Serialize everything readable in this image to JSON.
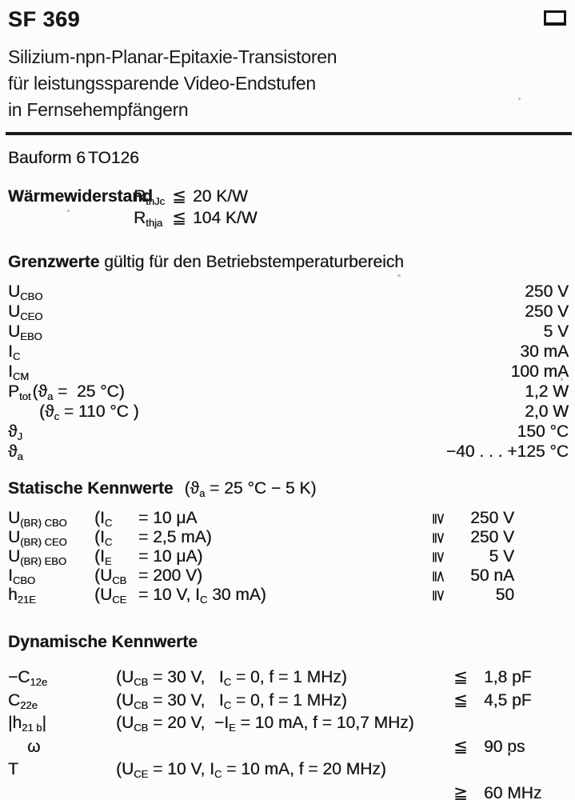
{
  "header": {
    "part_number": "SF 369",
    "title_lines": [
      "Silizium-npn-Planar-Epitaxie-Transistoren",
      "für leistungssparende Video-Endstufen",
      "in Fernsehempfängern"
    ]
  },
  "package_line": {
    "bauform": "Bauform 6",
    "package": "TO126"
  },
  "thermal": {
    "label": "Wärmewiderstand",
    "rows": [
      {
        "sym": [
          {
            "t": "R"
          },
          {
            "sub": "thJc"
          }
        ],
        "rel": "≦",
        "value": "20 K/W"
      },
      {
        "sym": [
          {
            "t": "R"
          },
          {
            "sub": "thja"
          }
        ],
        "rel": "≦",
        "value": "104 K/W"
      }
    ]
  },
  "grenzwerte": {
    "heading_bold": "Grenzwerte",
    "heading_rest": " gültig für den Betriebstemperaturbereich",
    "rows": [
      {
        "sym": [
          {
            "t": "U"
          },
          {
            "sub": "CBO"
          }
        ],
        "cond": [],
        "value": "250 V"
      },
      {
        "sym": [
          {
            "t": "U"
          },
          {
            "sub": "CEO"
          }
        ],
        "cond": [],
        "value": "250 V"
      },
      {
        "sym": [
          {
            "t": "U"
          },
          {
            "sub": "EBO"
          }
        ],
        "cond": [],
        "value": "5 V"
      },
      {
        "sym": [
          {
            "t": "I"
          },
          {
            "sub": "C"
          }
        ],
        "cond": [],
        "value": "30 mA"
      },
      {
        "sym": [
          {
            "t": "I"
          },
          {
            "sub": "CM"
          }
        ],
        "cond": [],
        "value": "100 mA"
      },
      {
        "sym": [
          {
            "t": "P"
          },
          {
            "sub": "tot"
          }
        ],
        "cond": [
          {
            "t": "(ϑ"
          },
          {
            "sub": "a"
          },
          {
            "t": " =  25 °C)"
          }
        ],
        "value": "1,2 W"
      },
      {
        "sym": [],
        "cond": [
          {
            "t": "(ϑ"
          },
          {
            "sub": "c"
          },
          {
            "t": " = 110 °C )"
          }
        ],
        "value": "2,0 W"
      },
      {
        "sym": [
          {
            "t": "ϑ"
          },
          {
            "sub": "J"
          }
        ],
        "cond": [],
        "value": "150 °C"
      },
      {
        "sym": [
          {
            "t": "ϑ"
          },
          {
            "sub": "a"
          }
        ],
        "cond": [],
        "value": "−40 . . . +125 °C"
      }
    ]
  },
  "statische": {
    "heading": "Statische Kennwerte",
    "heading_cond": [
      {
        "t": "(ϑ"
      },
      {
        "sub": "a"
      },
      {
        "t": " = 25 °C − 5 K)"
      }
    ],
    "rows": [
      {
        "sym": [
          {
            "t": "U"
          },
          {
            "sub": "(BR) CBO"
          }
        ],
        "condA": [
          {
            "t": "(I"
          },
          {
            "sub": "C"
          }
        ],
        "condB": [
          {
            "t": "= 10 μA"
          }
        ],
        "rel": "≧",
        "value": "250 V"
      },
      {
        "sym": [
          {
            "t": "U"
          },
          {
            "sub": "(BR) CEO"
          }
        ],
        "condA": [
          {
            "t": "(I"
          },
          {
            "sub": "C"
          }
        ],
        "condB": [
          {
            "t": "= 2,5 mA)"
          }
        ],
        "rel": "≧",
        "value": "250 V"
      },
      {
        "sym": [
          {
            "t": "U"
          },
          {
            "sub": "(BR) EBO"
          }
        ],
        "condA": [
          {
            "t": "(I"
          },
          {
            "sub": "E"
          }
        ],
        "condB": [
          {
            "t": "= 10 μA)"
          }
        ],
        "rel": "≧",
        "value": "5 V"
      },
      {
        "sym": [
          {
            "t": "I"
          },
          {
            "sub": "CBO"
          }
        ],
        "condA": [
          {
            "t": "(U"
          },
          {
            "sub": "CB"
          }
        ],
        "condB": [
          {
            "t": "= 200 V)"
          }
        ],
        "rel": "≦",
        "value": "50 nA"
      },
      {
        "sym": [
          {
            "t": "h"
          },
          {
            "sub": "21E"
          }
        ],
        "condA": [
          {
            "t": "(U"
          },
          {
            "sub": "CE"
          }
        ],
        "condB": [
          {
            "t": "= 10 V, I"
          },
          {
            "sub": "C"
          },
          {
            "t": " 30 mA)"
          }
        ],
        "rel": "≧",
        "value": "50"
      }
    ]
  },
  "dynamische": {
    "heading": "Dynamische Kennwerte",
    "rows": [
      {
        "sym": [
          {
            "t": "−C"
          },
          {
            "sub": "12e"
          }
        ],
        "cond": [
          {
            "t": "(U"
          },
          {
            "sub": "CB"
          },
          {
            "t": " = 30 V,   I"
          },
          {
            "sub": "C"
          },
          {
            "t": " = 0, f = 1 MHz)"
          }
        ],
        "rel": "≦",
        "value": "1,8 pF"
      },
      {
        "sym": [
          {
            "t": "C"
          },
          {
            "sub": "22e"
          }
        ],
        "cond": [
          {
            "t": "(U"
          },
          {
            "sub": "CB"
          },
          {
            "t": " = 30 V,   I"
          },
          {
            "sub": "C"
          },
          {
            "t": " = 0, f = 1 MHz)"
          }
        ],
        "rel": "≦",
        "value": "4,5 pF"
      },
      {
        "sym": [
          {
            "t": "|h"
          },
          {
            "sub": "21 b"
          },
          {
            "t": "|"
          }
        ],
        "cond": [
          {
            "t": "(U"
          },
          {
            "sub": "CB"
          },
          {
            "t": " = 20 V,  −I"
          },
          {
            "sub": "E"
          },
          {
            "t": " = 10 mA, f = 10,7 MHz)"
          }
        ],
        "rel": "",
        "value": ""
      },
      {
        "sym": [
          {
            "t": "ω"
          }
        ],
        "cond": [],
        "rel": "≦",
        "value": "90 ps"
      },
      {
        "sym": [
          {
            "t": "T"
          }
        ],
        "cond": [
          {
            "t": "(U"
          },
          {
            "sub": "CE"
          },
          {
            "t": " = 10 V, I"
          },
          {
            "sub": "C"
          },
          {
            "t": " = 10 mA, f = 20 MHz)"
          }
        ],
        "rel": "",
        "value": ""
      },
      {
        "sym": [],
        "cond": [],
        "rel": "≧",
        "value": "60 MHz"
      }
    ]
  }
}
